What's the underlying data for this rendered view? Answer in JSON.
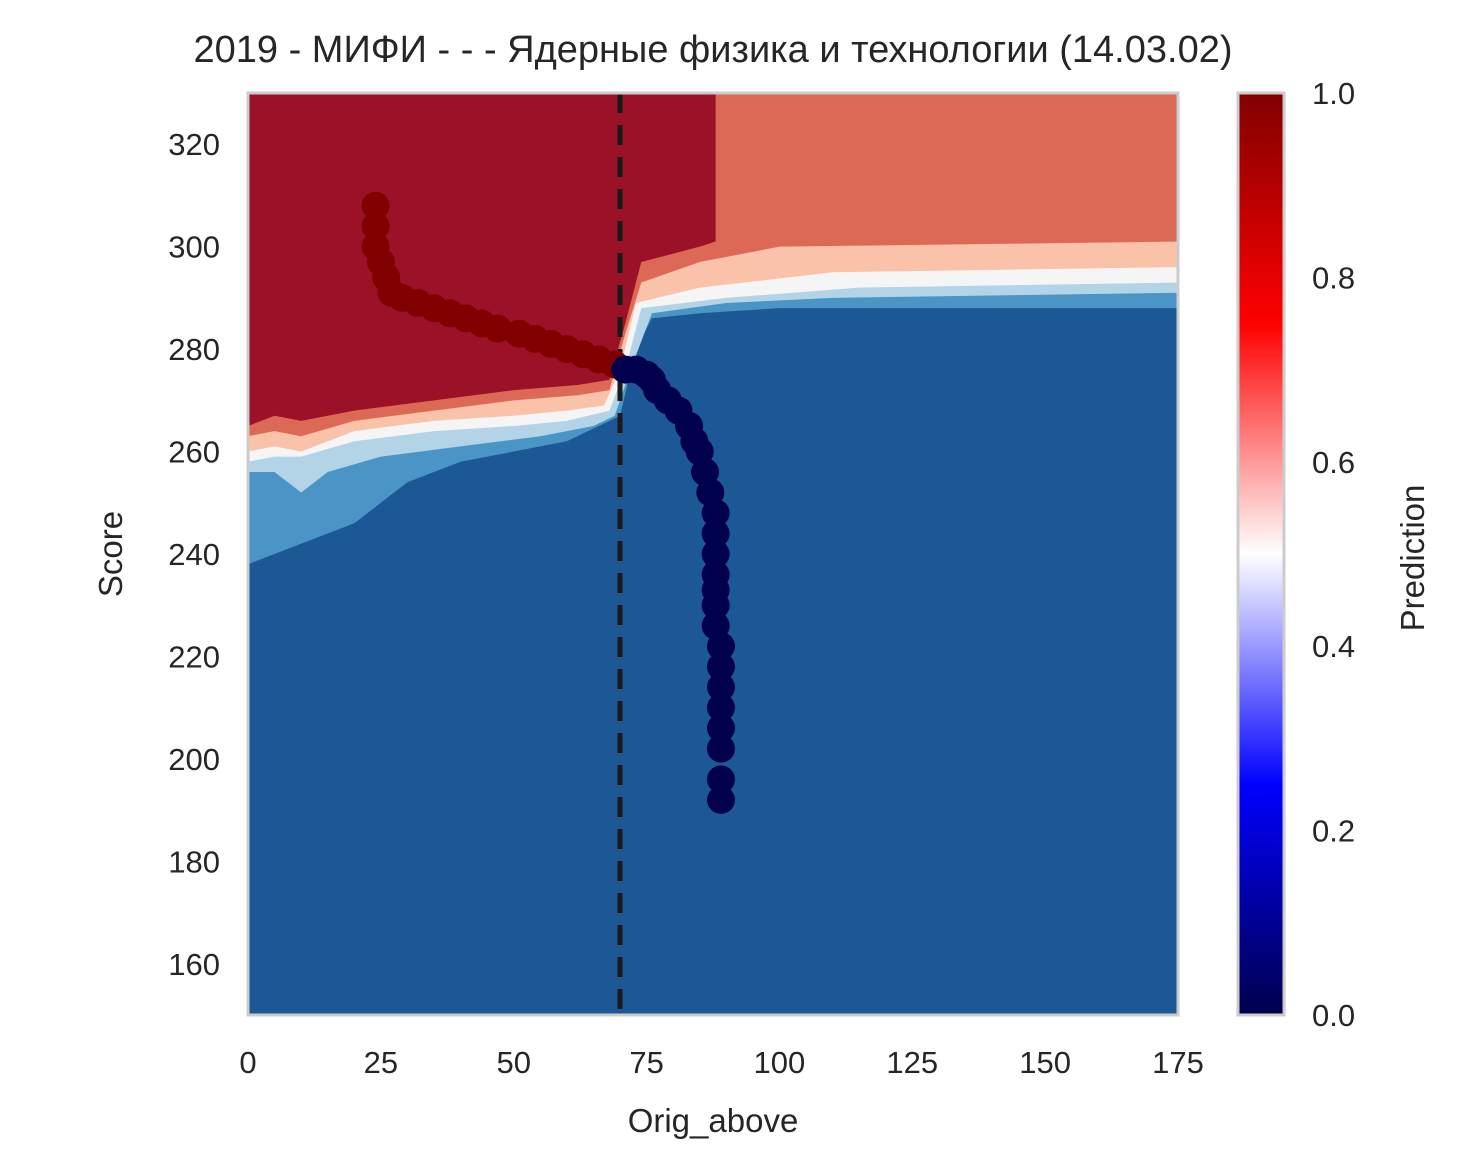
{
  "chart_data": {
    "type": "contour",
    "title": "2019 - МИФИ - - - Ядерные физика и технологии (14.03.02)",
    "xlabel": "Orig_above",
    "ylabel": "Score",
    "xlim": [
      0,
      175
    ],
    "ylim": [
      150,
      330
    ],
    "xticks": [
      "0",
      "25",
      "50",
      "75",
      "100",
      "125",
      "150",
      "175"
    ],
    "yticks": [
      "160",
      "180",
      "200",
      "220",
      "240",
      "260",
      "280",
      "300",
      "320"
    ],
    "grid": false,
    "threshold_line": {
      "x": 70,
      "style": "dashed",
      "color": "#1a1a1a"
    },
    "colorbar": {
      "label": "Prediction",
      "range": [
        0,
        1
      ],
      "ticks": [
        "0.0",
        "0.2",
        "0.4",
        "0.6",
        "0.8",
        "1.0"
      ],
      "colormap": "seismic"
    },
    "contour_levels": [
      {
        "range": [
          0.0,
          0.1
        ],
        "color": "#1c5796"
      },
      {
        "range": [
          0.1,
          0.3
        ],
        "color": "#4a95c5"
      },
      {
        "range": [
          0.3,
          0.45
        ],
        "color": "#b3d4e7"
      },
      {
        "range": [
          0.45,
          0.55
        ],
        "color": "#f5f5f5"
      },
      {
        "range": [
          0.55,
          0.7
        ],
        "color": "#f9c2a9"
      },
      {
        "range": [
          0.7,
          0.9
        ],
        "color": "#dc6955"
      },
      {
        "range": [
          0.9,
          1.0
        ],
        "color": "#9b1127"
      }
    ],
    "series": [
      {
        "marker": "circle",
        "color_by": "prediction",
        "points": [
          [
            24,
            308
          ],
          [
            24,
            304
          ],
          [
            24,
            300
          ],
          [
            25,
            297
          ],
          [
            26,
            294
          ],
          [
            27,
            291
          ],
          [
            29,
            290
          ],
          [
            32,
            289
          ],
          [
            35,
            288
          ],
          [
            38,
            287
          ],
          [
            41,
            286
          ],
          [
            44,
            285
          ],
          [
            47,
            284
          ],
          [
            51,
            283
          ],
          [
            54,
            282
          ],
          [
            57,
            281
          ],
          [
            60,
            280
          ],
          [
            63,
            279
          ],
          [
            66,
            278
          ],
          [
            69,
            277
          ],
          [
            71,
            276
          ],
          [
            73,
            276
          ],
          [
            75,
            275
          ],
          [
            76,
            274
          ],
          [
            77,
            272
          ],
          [
            79,
            270
          ],
          [
            81,
            268
          ],
          [
            83,
            265
          ],
          [
            84,
            262
          ],
          [
            85,
            260
          ],
          [
            86,
            256
          ],
          [
            87,
            252
          ],
          [
            88,
            248
          ],
          [
            88,
            244
          ],
          [
            88,
            240
          ],
          [
            88,
            236
          ],
          [
            88,
            233
          ],
          [
            88,
            230
          ],
          [
            88,
            226
          ],
          [
            89,
            222
          ],
          [
            89,
            218
          ],
          [
            89,
            214
          ],
          [
            89,
            210
          ],
          [
            89,
            206
          ],
          [
            89,
            202
          ],
          [
            89,
            196
          ],
          [
            89,
            192
          ]
        ]
      }
    ]
  }
}
